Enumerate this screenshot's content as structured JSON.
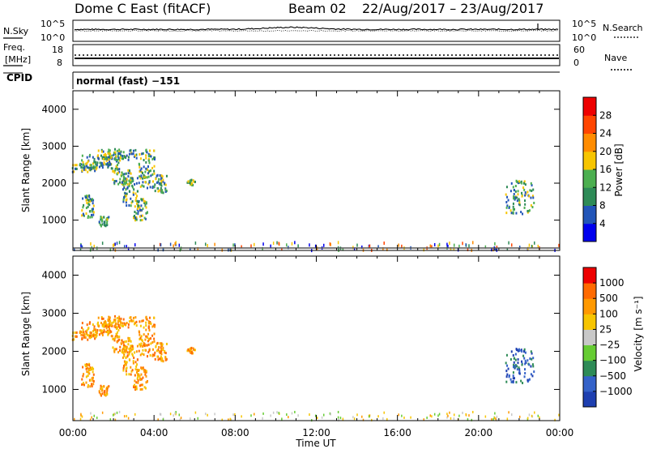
{
  "header": {
    "station": "Dome C East (fitACF)",
    "beam": "Beam 02",
    "dates": "22/Aug/2017 – 23/Aug/2017"
  },
  "labels": {
    "nsky": "N.Sky",
    "nsearch": "N.Search",
    "freq": "Freq.",
    "freq_unit": "[MHz]",
    "nave": "Nave",
    "cpid": "CPID",
    "cpid_value": "normal (fast) −151"
  },
  "chart_data": [
    {
      "type": "line",
      "panel": "noise",
      "ylabel_left": "N.Sky",
      "ylabel_right": "N.Search",
      "left_ticks": [
        "10^5",
        "10^0"
      ],
      "right_ticks": [
        "10^5",
        "10^0"
      ],
      "x_range_hours": [
        0,
        24
      ],
      "series": [
        {
          "name": "N.Sky",
          "level": 0.55
        },
        {
          "name": "N.Search",
          "level": 0.5
        }
      ]
    },
    {
      "type": "line",
      "panel": "frequency",
      "left_ticks": [
        "18",
        "8"
      ],
      "right_ticks": [
        "60",
        "0"
      ],
      "x_range_hours": [
        0,
        24
      ],
      "series": [
        {
          "name": "Freq.",
          "value_mhz": 12
        },
        {
          "name": "Nave",
          "value": 34
        }
      ]
    },
    {
      "type": "heatmap",
      "panel": "power",
      "xlabel": "",
      "ylabel": "Slant Range [km]",
      "ylim": [
        180,
        4500
      ],
      "y_ticks": [
        1000,
        2000,
        3000,
        4000
      ],
      "x_range_hours": [
        0,
        24
      ],
      "colorbar": {
        "label": "Power [dB]",
        "ticks": [
          "4",
          "8",
          "12",
          "16",
          "20",
          "24",
          "28"
        ],
        "colors": [
          "#0000ee",
          "#2255b8",
          "#2e8b57",
          "#4caf50",
          "#f7c500",
          "#ff8c00",
          "#ff4500",
          "#ee0000"
        ]
      }
    },
    {
      "type": "heatmap",
      "panel": "velocity",
      "xlabel": "Time UT",
      "ylabel": "Slant Range [km]",
      "ylim": [
        180,
        4500
      ],
      "y_ticks": [
        1000,
        2000,
        3000,
        4000
      ],
      "x_ticks": [
        "00:00",
        "04:00",
        "08:00",
        "12:00",
        "16:00",
        "20:00",
        "00:00"
      ],
      "x_range_hours": [
        0,
        24
      ],
      "colorbar": {
        "label": "Velocity [m s⁻¹]",
        "ticks": [
          "1000",
          "500",
          "100",
          "25",
          "−25",
          "−100",
          "−500",
          "−1000"
        ],
        "colors": [
          "#1e3fb0",
          "#3462c9",
          "#2e8b57",
          "#66cc33",
          "#c8c8c8",
          "#f7c500",
          "#ff9900",
          "#ff6a00",
          "#ee0000"
        ]
      }
    }
  ]
}
